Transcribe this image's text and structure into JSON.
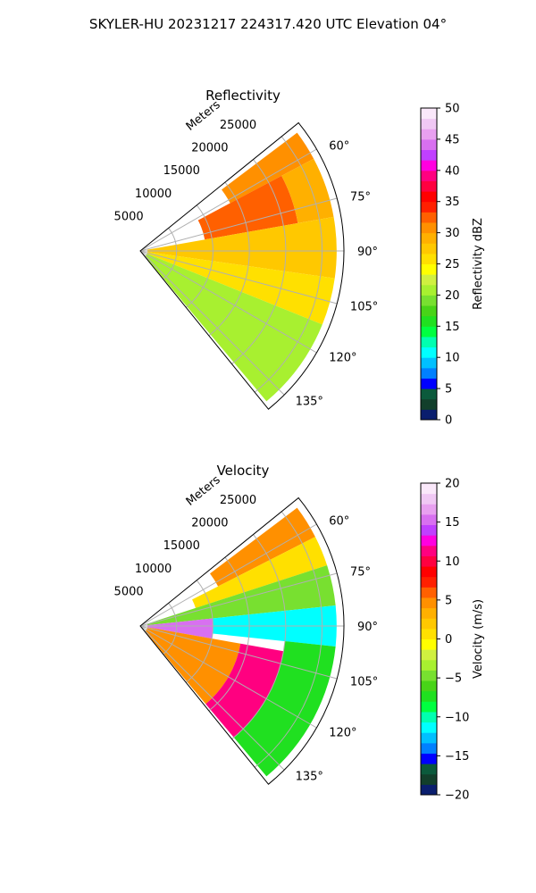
{
  "figure": {
    "suptitle": "SKYLER-HU  20231217  224317.420 UTC Elevation 04°"
  },
  "chart_data": [
    {
      "type": "heatmap",
      "subtype": "polar-sector (radar PPI)",
      "title": "Reflectivity",
      "range_label": "Meters",
      "range_ticks": [
        5000,
        10000,
        15000,
        20000,
        25000
      ],
      "range_tick_labels": [
        "5000",
        "10000",
        "15000",
        "20000",
        "25000"
      ],
      "rlim": [
        0,
        28000
      ],
      "azimuth_ticks_deg": [
        60,
        75,
        90,
        105,
        120,
        135
      ],
      "azimuth_tick_labels": [
        "60°",
        "75°",
        "90°",
        "105°",
        "120°",
        "135°"
      ],
      "azimuth_span_deg": [
        51,
        141
      ],
      "grid": true,
      "colorbar": {
        "label": "Reflectivity dBZ",
        "range": [
          0,
          50
        ],
        "ticks": [
          0,
          5,
          10,
          15,
          20,
          25,
          30,
          35,
          40,
          45,
          50
        ],
        "tick_labels": [
          "0",
          "5",
          "10",
          "15",
          "20",
          "25",
          "30",
          "35",
          "40",
          "45",
          "50"
        ],
        "colors": [
          "#0a1e6e",
          "#123f2b",
          "#0b5a3c",
          "#0000ff",
          "#0080ff",
          "#00c0ff",
          "#00ffff",
          "#00ffb0",
          "#00ff40",
          "#20e020",
          "#48d418",
          "#78e030",
          "#a8f030",
          "#d0f040",
          "#ffff00",
          "#ffe000",
          "#ffc800",
          "#ffb000",
          "#ff9000",
          "#ff6000",
          "#ff2000",
          "#ff0000",
          "#ff0040",
          "#ff0080",
          "#ff00e0",
          "#c040ff",
          "#d870f0",
          "#e8a0f0",
          "#f0c8f4",
          "#fae8fa"
        ]
      },
      "regions": [
        {
          "az": [
            53,
            62
          ],
          "r": [
            14000,
            27000
          ],
          "value": 31
        },
        {
          "az": [
            62,
            80
          ],
          "r": [
            9000,
            22000
          ],
          "value": 33
        },
        {
          "az": [
            62,
            80
          ],
          "r": [
            22000,
            27000
          ],
          "value": 29
        },
        {
          "az": [
            80,
            98
          ],
          "r": [
            1000,
            27000
          ],
          "value": 27
        },
        {
          "az": [
            98,
            112
          ],
          "r": [
            1000,
            27000
          ],
          "value": 25
        },
        {
          "az": [
            112,
            140
          ],
          "r": [
            1000,
            27000
          ],
          "value": 21
        }
      ]
    },
    {
      "type": "heatmap",
      "subtype": "polar-sector (radar PPI)",
      "title": "Velocity",
      "range_label": "Meters",
      "range_ticks": [
        5000,
        10000,
        15000,
        20000,
        25000
      ],
      "range_tick_labels": [
        "5000",
        "10000",
        "15000",
        "20000",
        "25000"
      ],
      "rlim": [
        0,
        28000
      ],
      "azimuth_ticks_deg": [
        60,
        75,
        90,
        105,
        120,
        135
      ],
      "azimuth_tick_labels": [
        "60°",
        "75°",
        "90°",
        "105°",
        "120°",
        "135°"
      ],
      "azimuth_span_deg": [
        51,
        141
      ],
      "grid": true,
      "colorbar": {
        "label": "Velocity (m/s)",
        "range": [
          -20,
          20
        ],
        "ticks": [
          -20,
          -15,
          -10,
          -5,
          0,
          5,
          10,
          15,
          20
        ],
        "tick_labels": [
          "−20",
          "−15",
          "−10",
          "−5",
          "0",
          "5",
          "10",
          "15",
          "20"
        ],
        "colors": [
          "#0a1e6e",
          "#123f2b",
          "#0b5a3c",
          "#0000ff",
          "#0080ff",
          "#00c0ff",
          "#00ffff",
          "#00ffb0",
          "#00ff40",
          "#20e020",
          "#48d418",
          "#78e030",
          "#a8f030",
          "#d0f040",
          "#ffff00",
          "#ffe000",
          "#ffc800",
          "#ffb000",
          "#ff9000",
          "#ff6000",
          "#ff2000",
          "#ff0000",
          "#ff0040",
          "#ff0080",
          "#ff00e0",
          "#c040ff",
          "#d870f0",
          "#e8a0f0",
          "#f0c8f4",
          "#fae8fa"
        ]
      },
      "regions": [
        {
          "az": [
            53,
            63
          ],
          "r": [
            12000,
            27000
          ],
          "value": 4
        },
        {
          "az": [
            63,
            72
          ],
          "r": [
            8000,
            27000
          ],
          "value": 1
        },
        {
          "az": [
            72,
            84
          ],
          "r": [
            1000,
            27000
          ],
          "value": -5
        },
        {
          "az": [
            84,
            96
          ],
          "r": [
            10000,
            27000
          ],
          "value": -11
        },
        {
          "az": [
            96,
            140
          ],
          "r": [
            20000,
            27000
          ],
          "value": -7
        },
        {
          "az": [
            84,
            100
          ],
          "r": [
            1000,
            10000
          ],
          "value": 15
        },
        {
          "az": [
            100,
            140
          ],
          "r": [
            1000,
            14000
          ],
          "value": 5
        },
        {
          "az": [
            100,
            140
          ],
          "r": [
            14000,
            20000
          ],
          "value": 11
        }
      ]
    }
  ]
}
